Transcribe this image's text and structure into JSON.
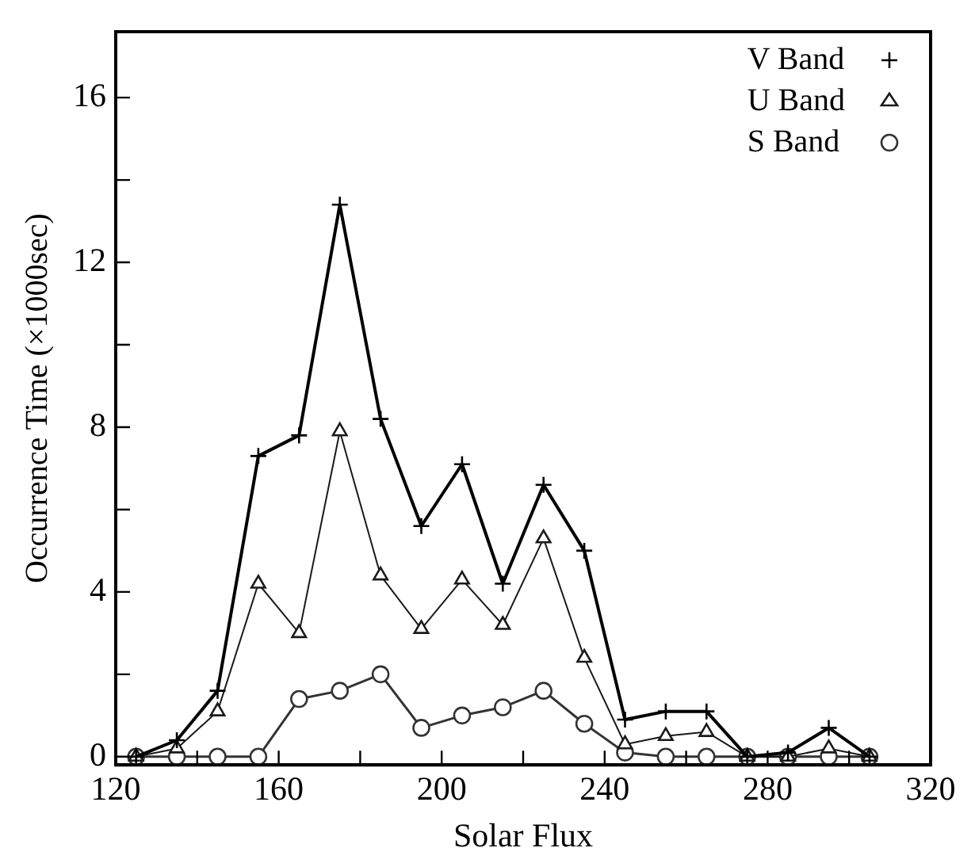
{
  "chart_data": {
    "type": "line",
    "xlabel": "Solar Flux",
    "ylabel": "Occurrence Time (×1000sec)",
    "x": [
      125,
      135,
      145,
      155,
      165,
      175,
      185,
      195,
      205,
      215,
      225,
      235,
      245,
      255,
      265,
      275,
      285,
      295,
      305
    ],
    "series": [
      {
        "name": "V Band",
        "color": "#000000",
        "marker": "cross",
        "values": [
          0,
          0.4,
          1.6,
          7.3,
          7.8,
          13.4,
          8.2,
          5.6,
          7.1,
          4.2,
          6.6,
          5.0,
          0.9,
          1.1,
          1.1,
          0,
          0.1,
          0.7,
          0
        ]
      },
      {
        "name": "U Band",
        "color": "#1a1a1a",
        "marker": "triangle",
        "values": [
          0,
          0.2,
          1.1,
          4.2,
          3.0,
          7.9,
          4.4,
          3.1,
          4.3,
          3.2,
          5.3,
          2.4,
          0.3,
          0.5,
          0.6,
          0,
          0,
          0.2,
          0
        ]
      },
      {
        "name": "S Band",
        "color": "#333333",
        "marker": "circle",
        "values": [
          0,
          0,
          0,
          0,
          1.4,
          1.6,
          2.0,
          0.7,
          1.0,
          1.2,
          1.6,
          0.8,
          0.1,
          0,
          0,
          0,
          0,
          0,
          0
        ]
      }
    ],
    "xlim": [
      120,
      320
    ],
    "xticks": [
      120,
      {
        "value": 140,
        "label": null
      },
      160,
      {
        "value": 180,
        "label": null
      },
      200,
      {
        "value": 220,
        "label": null
      },
      240,
      {
        "value": 260,
        "label": null
      },
      280,
      {
        "value": 300,
        "label": null
      },
      320
    ],
    "ylim": [
      -0.2,
      17.6
    ],
    "yticks": [
      0,
      {
        "value": 2,
        "label": null
      },
      4,
      {
        "value": 6,
        "label": null
      },
      8,
      {
        "value": 10,
        "label": null
      },
      12,
      {
        "value": 14,
        "label": null
      },
      16
    ],
    "legend": "top right",
    "grid": false,
    "line_style": "solid"
  }
}
